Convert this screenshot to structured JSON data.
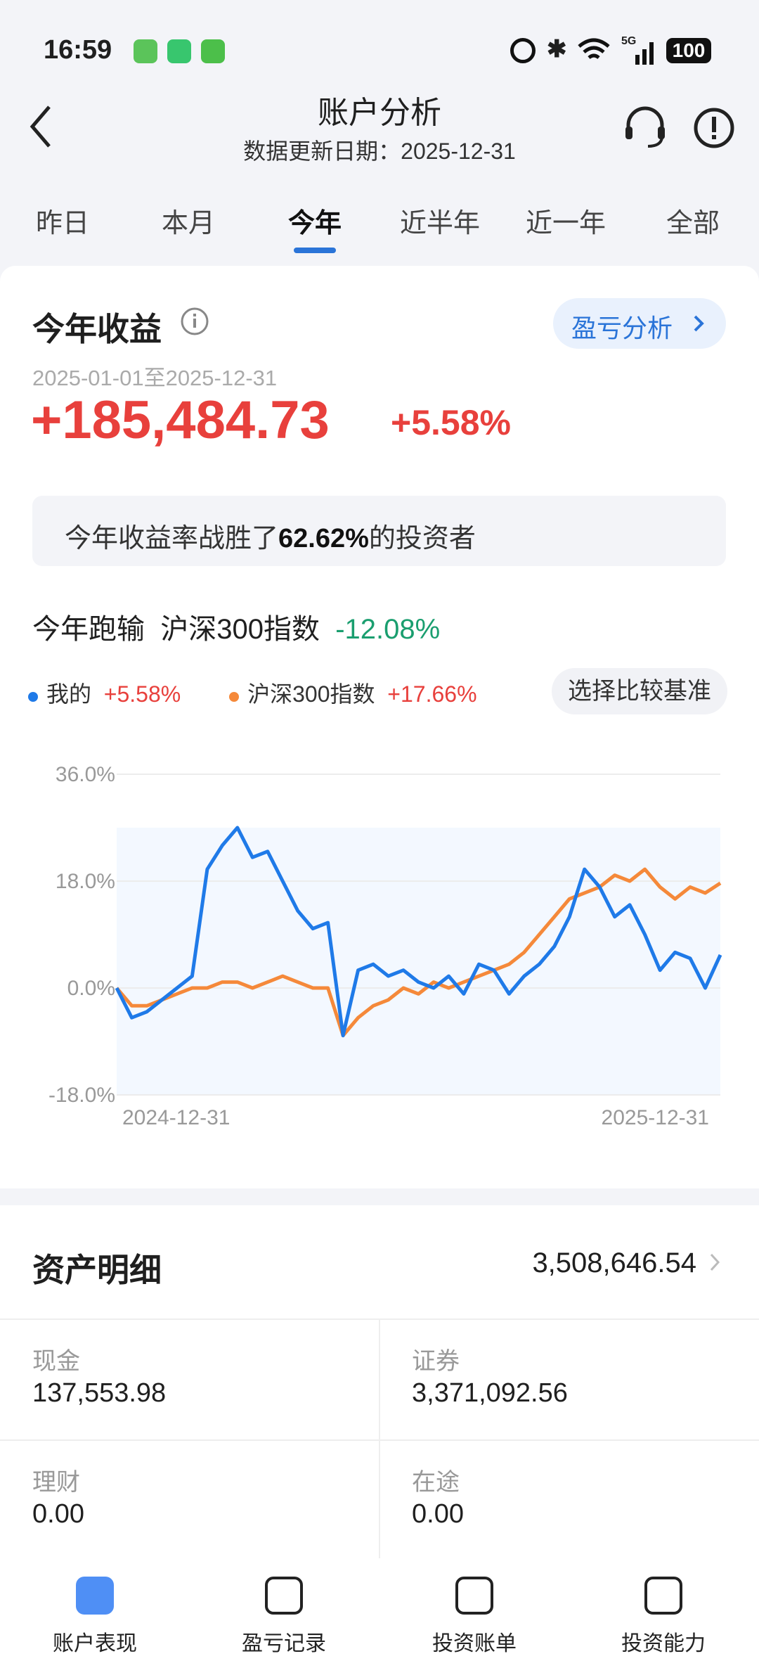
{
  "status_bar": {
    "time": "16:59",
    "network": "5G",
    "battery": "100"
  },
  "header": {
    "title": "账户分析",
    "subtitle": "数据更新日期：2025-12-31"
  },
  "tabs": {
    "items": [
      "昨日",
      "本月",
      "今年",
      "近半年",
      "近一年",
      "全部"
    ],
    "selected": 2
  },
  "profit": {
    "title": "今年收益",
    "button": "盈亏分析",
    "range": "2025-01-01至2025-12-31",
    "amount": "+185,484.73",
    "rate": "+5.58%",
    "beat": {
      "prefix": "今年收益率战胜了",
      "value": "62.62%",
      "suffix": "的投资者"
    },
    "compare": {
      "label": "今年跑输",
      "benchmark": "沪深300指数",
      "diff": "-12.08%"
    },
    "legend": [
      {
        "name": "我的",
        "value": "+5.58%"
      },
      {
        "name": "沪深300指数",
        "value": "+17.66%"
      }
    ],
    "benchmark_button": "选择比较基准"
  },
  "chart_data": {
    "type": "line",
    "categories": [
      "2024-12-31",
      null,
      null,
      null,
      null,
      null,
      null,
      null,
      null,
      null,
      null,
      null,
      null,
      null,
      null,
      null,
      null,
      null,
      null,
      null,
      null,
      null,
      null,
      null,
      null,
      null,
      null,
      null,
      null,
      null,
      null,
      null,
      null,
      null,
      null,
      null,
      null,
      null,
      null,
      null,
      "2025-12-31"
    ],
    "series": [
      {
        "name": "我的",
        "color": "#1f7ae8",
        "values": [
          0,
          -5,
          -4,
          -2,
          0,
          2,
          20,
          24,
          27,
          22,
          23,
          18,
          13,
          10,
          11,
          -8,
          3,
          4,
          2,
          3,
          1,
          0,
          2,
          -1,
          4,
          3,
          -1,
          2,
          4,
          7,
          12,
          20,
          17,
          12,
          14,
          9,
          3,
          6,
          5,
          0,
          5.58
        ]
      },
      {
        "name": "沪深300指数",
        "color": "#f5893a",
        "values": [
          0,
          -3,
          -3,
          -2,
          -1,
          0,
          0,
          1,
          1,
          0,
          1,
          2,
          1,
          0,
          0,
          -8,
          -5,
          -3,
          -2,
          0,
          -1,
          1,
          0,
          1,
          2,
          3,
          4,
          6,
          9,
          12,
          15,
          16,
          17,
          19,
          18,
          20,
          17,
          15,
          17,
          16,
          17.66
        ]
      }
    ],
    "ylim": [
      -18,
      36
    ],
    "yticks": [
      {
        "value": -18,
        "label": "-18.0%"
      },
      {
        "value": 0,
        "label": "0.0%"
      },
      {
        "value": 18,
        "label": "18.0%"
      },
      {
        "value": 36,
        "label": "36.0%"
      }
    ],
    "grid": true
  },
  "assets": {
    "title": "资产明细",
    "total": "3,508,646.54",
    "items": [
      {
        "label": "现金",
        "value": "137,553.98"
      },
      {
        "label": "证券",
        "value": "3,371,092.56"
      },
      {
        "label": "理财",
        "value": "0.00"
      },
      {
        "label": "在途",
        "value": "0.00"
      }
    ]
  },
  "nav": [
    "账户表现",
    "盈亏记录",
    "投资账单",
    "投资能力"
  ]
}
